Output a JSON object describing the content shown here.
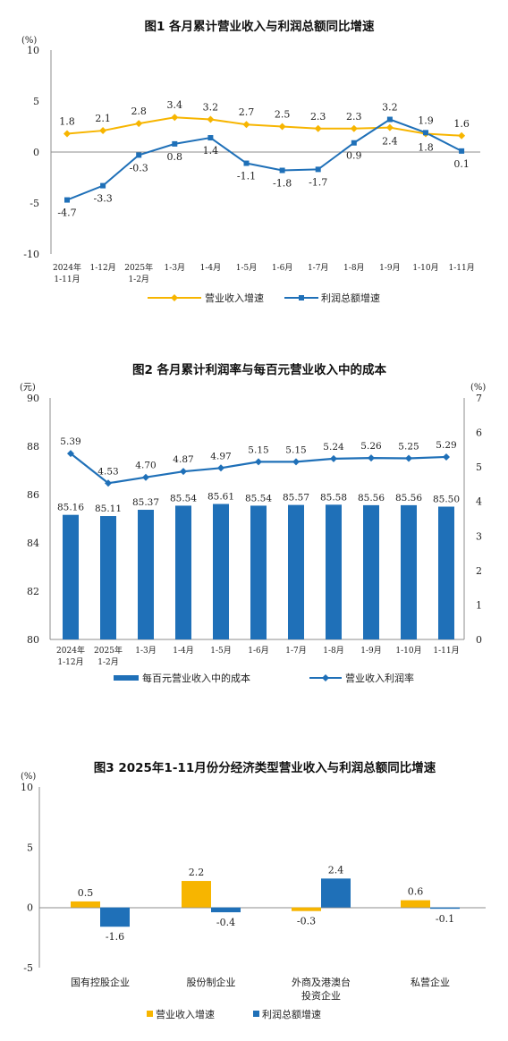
{
  "colors": {
    "orange": "#f7b500",
    "blue": "#1f70b8",
    "axis": "#8c8c8c",
    "text": "#222222"
  },
  "figures": [
    {
      "id": "fig1",
      "title": "图1  各月累计营业收入与利润总额同比增速",
      "unit": "(%)",
      "legend": [
        "营业收入增速",
        "利润总额增速"
      ]
    },
    {
      "id": "fig2",
      "title": "图2  各月累计利润率与每百元营业收入中的成本",
      "unit_left": "(元)",
      "unit_right": "(%)",
      "legend": [
        "每百元营业收入中的成本",
        "营业收入利润率"
      ]
    },
    {
      "id": "fig3",
      "title": "图3  2025年1-11月份分经济类型营业收入与利润总额同比增速",
      "unit": "(%)",
      "legend": [
        "营业收入增速",
        "利润总额增速"
      ]
    }
  ],
  "chart_data": [
    {
      "type": "line",
      "title": "图1  各月累计营业收入与利润总额同比增速",
      "ylabel": "(%)",
      "ylim": [
        -10,
        10
      ],
      "yticks": [
        -10,
        -5,
        0,
        5,
        10
      ],
      "categories": [
        [
          "2024年",
          "1-11月"
        ],
        [
          "1-12月"
        ],
        [
          "2025年",
          "1-2月"
        ],
        [
          "1-3月"
        ],
        [
          "1-4月"
        ],
        [
          "1-5月"
        ],
        [
          "1-6月"
        ],
        [
          "1-7月"
        ],
        [
          "1-8月"
        ],
        [
          "1-9月"
        ],
        [
          "1-10月"
        ],
        [
          "1-11月"
        ]
      ],
      "series": [
        {
          "name": "营业收入增速",
          "values": [
            1.8,
            2.1,
            2.8,
            3.4,
            3.2,
            2.7,
            2.5,
            2.3,
            2.3,
            2.4,
            1.8,
            1.6
          ],
          "labels": [
            "1.8",
            "2.1",
            "2.8",
            "3.4",
            "3.2",
            "2.7",
            "2.5",
            "2.3",
            "2.3",
            "2.4",
            "1.8",
            "1.6"
          ]
        },
        {
          "name": "利润总额增速",
          "values": [
            -4.7,
            -3.3,
            -0.3,
            0.8,
            1.4,
            -1.1,
            -1.8,
            -1.7,
            0.9,
            3.2,
            1.9,
            0.1
          ],
          "labels": [
            "-4.7",
            "-3.3",
            "-0.3",
            "0.8",
            "1.4",
            "-1.1",
            "-1.8",
            "-1.7",
            "0.9",
            "3.2",
            "1.9",
            "0.1"
          ]
        }
      ],
      "legend_position": "bottom",
      "grid": false
    },
    {
      "type": "bar",
      "title": "图2  各月累计利润率与每百元营业收入中的成本",
      "ylabel": "(元)",
      "y2label": "(%)",
      "ylim": [
        80,
        90
      ],
      "yticks": [
        80,
        82,
        84,
        86,
        88,
        90
      ],
      "y2lim": [
        0,
        7
      ],
      "y2ticks": [
        0,
        1,
        2,
        3,
        4,
        5,
        6,
        7
      ],
      "categories": [
        [
          "2024年",
          "1-12月"
        ],
        [
          "2025年",
          "1-2月"
        ],
        [
          "1-3月"
        ],
        [
          "1-4月"
        ],
        [
          "1-5月"
        ],
        [
          "1-6月"
        ],
        [
          "1-7月"
        ],
        [
          "1-8月"
        ],
        [
          "1-9月"
        ],
        [
          "1-10月"
        ],
        [
          "1-11月"
        ]
      ],
      "series": [
        {
          "name": "每百元营业收入中的成本",
          "kind": "bar",
          "axis": "left",
          "values": [
            85.16,
            85.11,
            85.37,
            85.54,
            85.61,
            85.54,
            85.57,
            85.58,
            85.56,
            85.56,
            85.5
          ],
          "labels": [
            "85.16",
            "85.11",
            "85.37",
            "85.54",
            "85.61",
            "85.54",
            "85.57",
            "85.58",
            "85.56",
            "85.56",
            "85.50"
          ]
        },
        {
          "name": "营业收入利润率",
          "kind": "line",
          "axis": "right",
          "values": [
            5.39,
            4.53,
            4.7,
            4.87,
            4.97,
            5.15,
            5.15,
            5.24,
            5.26,
            5.25,
            5.29
          ],
          "labels": [
            "5.39",
            "4.53",
            "4.70",
            "4.87",
            "4.97",
            "5.15",
            "5.15",
            "5.24",
            "5.26",
            "5.25",
            "5.29"
          ]
        }
      ],
      "legend_position": "bottom",
      "grid": false
    },
    {
      "type": "bar",
      "title": "图3  2025年1-11月份分经济类型营业收入与利润总额同比增速",
      "ylabel": "(%)",
      "ylim": [
        -5,
        10
      ],
      "yticks": [
        -5,
        0,
        5,
        10
      ],
      "categories": [
        [
          "国有控股企业"
        ],
        [
          "股份制企业"
        ],
        [
          "外商及港澳台",
          "投资企业"
        ],
        [
          "私营企业"
        ]
      ],
      "series": [
        {
          "name": "营业收入增速",
          "values": [
            0.5,
            2.2,
            -0.3,
            0.6
          ],
          "labels": [
            "0.5",
            "2.2",
            "-0.3",
            "0.6"
          ]
        },
        {
          "name": "利润总额增速",
          "values": [
            -1.6,
            -0.4,
            2.4,
            -0.1
          ],
          "labels": [
            "-1.6",
            "-0.4",
            "2.4",
            "-0.1"
          ]
        }
      ],
      "legend_position": "bottom",
      "grid": false
    }
  ]
}
